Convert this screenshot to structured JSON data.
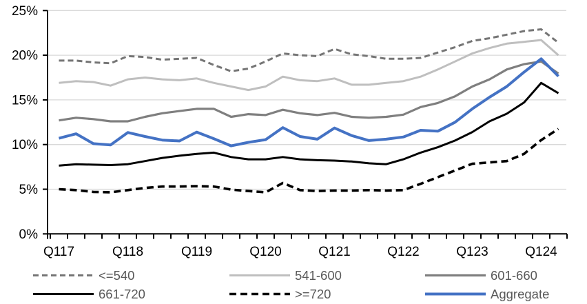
{
  "chart_data": {
    "type": "line",
    "title": "",
    "x_axis": {
      "tick_labels": [
        "Q117",
        "Q118",
        "Q119",
        "Q120",
        "Q121",
        "Q122",
        "Q123",
        "Q124"
      ],
      "label_point_indices": [
        0,
        4,
        8,
        12,
        16,
        20,
        24,
        28
      ],
      "n_points": 30,
      "minor_tick_every_points": 1
    },
    "y_axis": {
      "tick_labels": [
        "0%",
        "5%",
        "10%",
        "15%",
        "20%",
        "25%"
      ],
      "min": 0,
      "max": 25,
      "step": 5,
      "unit": "%"
    },
    "grid": "horizontal",
    "legend_position": "bottom",
    "legend_rows": [
      [
        "<=540",
        "541-600",
        "601-660"
      ],
      [
        "661-720",
        ">=720",
        "Aggregate"
      ]
    ],
    "series": [
      {
        "name": "<=540",
        "color": "#757575",
        "style": "dashed",
        "width": 3,
        "values": [
          19.4,
          19.4,
          19.2,
          19.1,
          19.9,
          19.8,
          19.5,
          19.6,
          19.7,
          18.9,
          18.2,
          18.5,
          19.3,
          20.2,
          20.0,
          19.9,
          20.7,
          20.1,
          19.9,
          19.6,
          19.6,
          19.7,
          20.3,
          20.9,
          21.6,
          21.9,
          22.3,
          22.7,
          22.9,
          21.4
        ]
      },
      {
        "name": "541-600",
        "color": "#BFBFBF",
        "style": "solid",
        "width": 3,
        "values": [
          16.9,
          17.1,
          17.0,
          16.6,
          17.3,
          17.5,
          17.3,
          17.2,
          17.4,
          16.9,
          16.5,
          16.1,
          16.5,
          17.6,
          17.2,
          17.1,
          17.4,
          16.7,
          16.7,
          16.9,
          17.1,
          17.6,
          18.4,
          19.3,
          20.2,
          20.8,
          21.3,
          21.5,
          21.7,
          20.0
        ]
      },
      {
        "name": "601-660",
        "color": "#7F7F7F",
        "style": "solid",
        "width": 3.2,
        "values": [
          12.7,
          13.0,
          12.85,
          12.6,
          12.6,
          13.1,
          13.5,
          13.75,
          14.0,
          14.0,
          13.1,
          13.4,
          13.3,
          13.9,
          13.5,
          13.3,
          13.55,
          13.1,
          13.0,
          13.1,
          13.35,
          14.2,
          14.65,
          15.4,
          16.5,
          17.3,
          18.4,
          19.0,
          19.3,
          17.95
        ]
      },
      {
        "name": "661-720",
        "color": "#000000",
        "style": "solid",
        "width": 3,
        "values": [
          7.65,
          7.8,
          7.75,
          7.7,
          7.8,
          8.15,
          8.5,
          8.75,
          8.95,
          9.1,
          8.6,
          8.35,
          8.35,
          8.6,
          8.35,
          8.25,
          8.2,
          8.1,
          7.9,
          7.8,
          8.35,
          9.1,
          9.7,
          10.45,
          11.4,
          12.6,
          13.45,
          14.7,
          16.9,
          15.75
        ]
      },
      {
        "name": ">=720",
        "color": "#000000",
        "style": "dashed",
        "width": 3.6,
        "values": [
          5.0,
          4.9,
          4.7,
          4.65,
          4.9,
          5.15,
          5.3,
          5.3,
          5.35,
          5.3,
          4.95,
          4.8,
          4.65,
          5.7,
          4.9,
          4.8,
          4.85,
          4.85,
          4.9,
          4.85,
          4.9,
          5.6,
          6.35,
          7.1,
          7.85,
          8.0,
          8.15,
          8.95,
          10.5,
          11.75
        ]
      },
      {
        "name": "Aggregate",
        "color": "#4472C4",
        "style": "solid",
        "width": 4,
        "values": [
          10.7,
          11.2,
          10.1,
          9.95,
          11.35,
          10.9,
          10.5,
          10.4,
          11.4,
          10.65,
          9.85,
          10.25,
          10.55,
          11.9,
          10.9,
          10.6,
          11.85,
          11.0,
          10.45,
          10.6,
          10.85,
          11.6,
          11.5,
          12.5,
          14.0,
          15.3,
          16.5,
          18.1,
          19.6,
          17.65
        ]
      }
    ],
    "colors": {
      "background": "#FFFFFF",
      "gridline": "#D9D9D9",
      "axis": "#000000",
      "axis_label": "#000000",
      "legend_text": "#595959"
    }
  }
}
